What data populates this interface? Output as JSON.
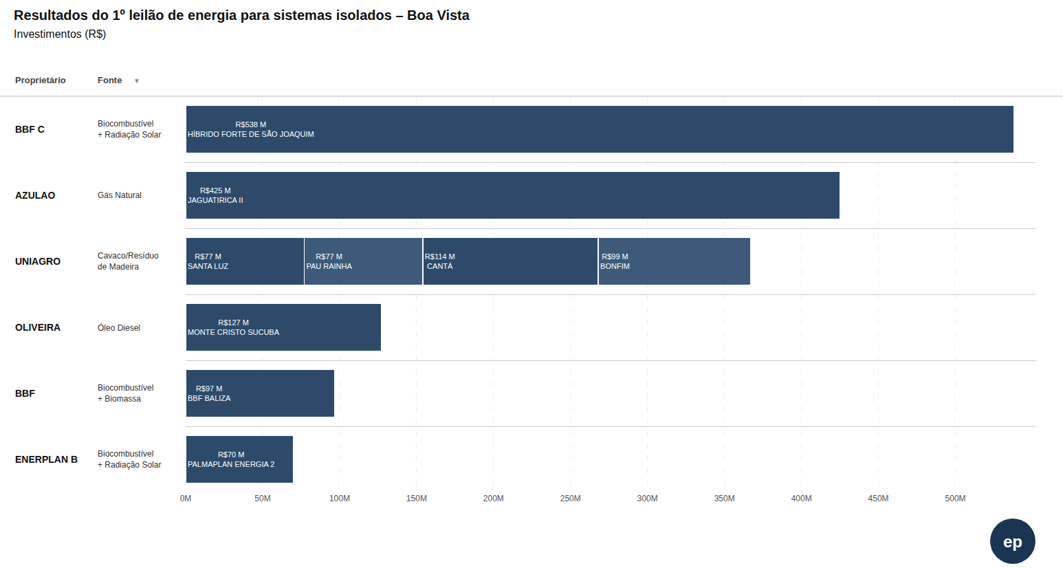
{
  "chart_data": {
    "type": "bar",
    "orientation": "horizontal",
    "stacked": true,
    "data_labels": true,
    "grid": true,
    "title": "Resultados do 1º leilão de energia para sistemas isolados – Boa Vista",
    "subtitle": "Investimentos (R$)",
    "column_headers": [
      "Proprietário",
      "Fonte"
    ],
    "annotations": [
      {
        "text": "▼"
      },
      {
        "text": "ep",
        "color": "#1a3554"
      }
    ],
    "categories": [
      "BBF C",
      "AZULAO",
      "UNIAGRO",
      "OLIVEIRA",
      "BBF",
      "ENERPLAN B"
    ],
    "sources": [
      "Biocombustível\n+ Radiação Solar",
      "Gás Natural",
      "Cavaco/Resíduo\nde Madeira",
      "Óleo Diesel",
      "Biocombustível\n+ Biomassa",
      "Biocombustível\n+ Radiação Solar"
    ],
    "series": [
      {
        "color": "#2e4a6b",
        "values": [
          538,
          425,
          77,
          127,
          97,
          70
        ],
        "value_labels": [
          "R$538 M",
          "R$425 M",
          "R$77 M",
          "R$127 M",
          "R$97 M",
          "R$70 M"
        ],
        "bar_names": [
          "HÍBRIDO FORTE DE SÃO JOAQUIM",
          "JAGUATIRICA II",
          "SANTA LUZ",
          "MONTE CRISTO SUCUBA",
          "BBF BALIZA",
          "PALMAPLAN ENERGIA 2"
        ]
      },
      {
        "color": "#3d5a7a",
        "values": [
          null,
          null,
          77,
          null,
          null,
          null
        ],
        "value_labels": [
          null,
          null,
          "R$77 M",
          null,
          null,
          null
        ],
        "bar_names": [
          null,
          null,
          "PAU RAINHA",
          null,
          null,
          null
        ]
      },
      {
        "color": "#2e4a6b",
        "values": [
          null,
          null,
          114,
          null,
          null,
          null
        ],
        "value_labels": [
          null,
          null,
          "R$114 M",
          null,
          null,
          null
        ],
        "bar_names": [
          null,
          null,
          "CANTÁ",
          null,
          null,
          null
        ]
      },
      {
        "color": "#3d5a7a",
        "values": [
          null,
          null,
          99,
          null,
          null,
          null
        ],
        "value_labels": [
          null,
          null,
          "R$99 M",
          null,
          null,
          null
        ],
        "bar_names": [
          null,
          null,
          "BONFIM",
          null,
          null,
          null
        ]
      }
    ],
    "xlim": [
      0,
      552
    ],
    "xticks": [
      {
        "value": 0,
        "label": "0M"
      },
      {
        "value": 50,
        "label": "50M"
      },
      {
        "value": 100,
        "label": "100M"
      },
      {
        "value": 150,
        "label": "150M"
      },
      {
        "value": 200,
        "label": "200M"
      },
      {
        "value": 250,
        "label": "250M"
      },
      {
        "value": 300,
        "label": "300M"
      },
      {
        "value": 350,
        "label": "350M"
      },
      {
        "value": 400,
        "label": "400M"
      },
      {
        "value": 450,
        "label": "450M"
      },
      {
        "value": 500,
        "label": "500M"
      }
    ]
  }
}
